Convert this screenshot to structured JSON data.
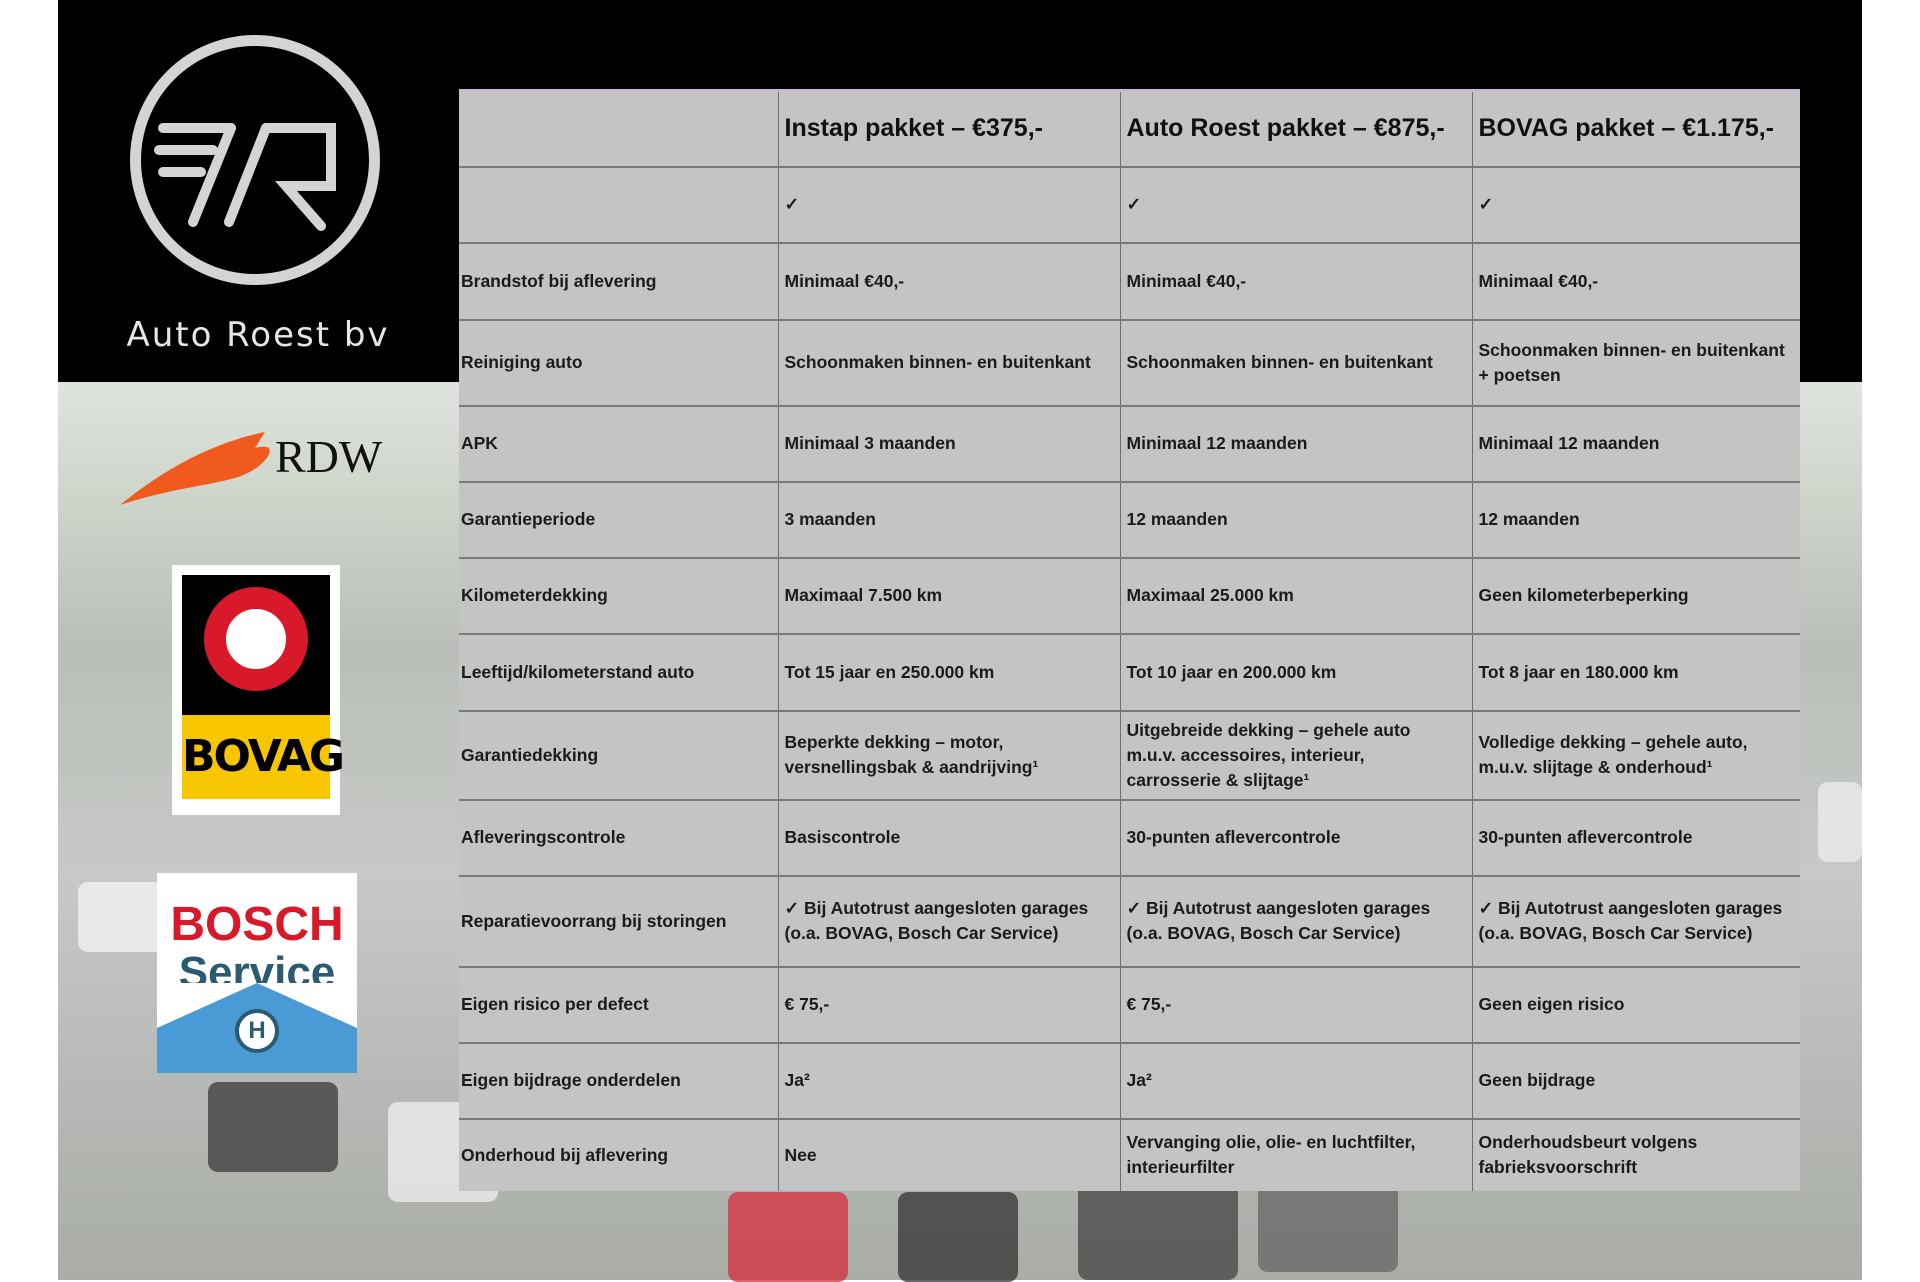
{
  "brand": {
    "name": "Auto Roest bv",
    "logos": [
      "RDW",
      "BOVAG",
      "BOSCH Service"
    ],
    "rdw": "RDW",
    "bovag": "BOVAG",
    "bosch_1": "BOSCH",
    "bosch_2": "Service"
  },
  "table": {
    "headers": [
      "",
      "Instap pakket – €375,-",
      "Auto Roest pakket – €875,-",
      "BOVAG pakket – €1.175,-"
    ],
    "rows": [
      [
        "",
        "✓",
        "✓",
        "✓"
      ],
      [
        "Brandstof bij aflevering",
        "Minimaal €40,-",
        "Minimaal €40,-",
        "Minimaal €40,-"
      ],
      [
        "Reiniging auto",
        "Schoonmaken binnen- en buitenkant",
        "Schoonmaken binnen- en buitenkant",
        "Schoonmaken binnen- en buitenkant + poetsen"
      ],
      [
        "APK",
        "Minimaal 3 maanden",
        "Minimaal 12 maanden",
        "Minimaal 12 maanden"
      ],
      [
        "Garantieperiode",
        "3 maanden",
        "12 maanden",
        "12 maanden"
      ],
      [
        "Kilometerdekking",
        "Maximaal 7.500 km",
        "Maximaal 25.000 km",
        "Geen kilometerbeperking"
      ],
      [
        "Leeftijd/kilometerstand auto",
        "Tot 15 jaar en 250.000 km",
        "Tot 10 jaar en 200.000 km",
        "Tot 8 jaar en 180.000 km"
      ],
      [
        "Garantiedekking",
        "Beperkte dekking – motor, versnellingsbak & aandrijving¹",
        "Uitgebreide dekking – gehele auto m.u.v. accessoires, interieur, carrosserie & slijtage¹",
        "Volledige dekking – gehele auto, m.u.v. slijtage & onderhoud¹"
      ],
      [
        "Afleveringscontrole",
        "Basiscontrole",
        "30-punten aflevercontrole",
        "30-punten aflevercontrole"
      ],
      [
        "Reparatievoorrang bij storingen",
        "✓ Bij Autotrust aangesloten garages (o.a. BOVAG, Bosch Car Service)",
        "✓ Bij Autotrust aangesloten garages (o.a. BOVAG, Bosch Car Service)",
        "✓ Bij Autotrust aangesloten garages (o.a. BOVAG, Bosch Car Service)"
      ],
      [
        "Eigen risico per defect",
        "€ 75,-",
        "€ 75,-",
        "Geen eigen risico"
      ],
      [
        "Eigen bijdrage onderdelen",
        "Ja²",
        "Ja²",
        "Geen bijdrage"
      ],
      [
        "Onderhoud bij aflevering",
        "Nee",
        "Vervanging olie, olie- en luchtfilter, interieurfilter",
        "Onderhoudsbeurt volgens fabrieksvoorschrift"
      ]
    ]
  }
}
